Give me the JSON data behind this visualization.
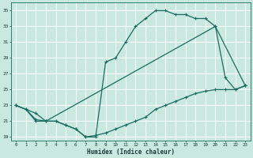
{
  "xlabel": "Humidex (Indice chaleur)",
  "bg_color": "#c8e8e0",
  "grid_color": "#ffffff",
  "line_color": "#1a6b60",
  "xlim": [
    -0.5,
    23.5
  ],
  "ylim": [
    18.5,
    36
  ],
  "yticks": [
    19,
    21,
    23,
    25,
    27,
    29,
    31,
    33,
    35
  ],
  "xticks": [
    0,
    1,
    2,
    3,
    4,
    5,
    6,
    7,
    8,
    9,
    10,
    11,
    12,
    13,
    14,
    15,
    16,
    17,
    18,
    19,
    20,
    21,
    22,
    23
  ],
  "line1_x": [
    0,
    1,
    2,
    3,
    4,
    5,
    6,
    7,
    8,
    9,
    10,
    11,
    12,
    13,
    14,
    15,
    16,
    17,
    18,
    19,
    20,
    21,
    22,
    23
  ],
  "line1_y": [
    23.0,
    22.5,
    21.0,
    21.0,
    21.0,
    20.5,
    20.0,
    19.0,
    19.0,
    28.5,
    29.0,
    31.0,
    33.0,
    34.0,
    35.0,
    35.0,
    34.5,
    34.5,
    34.0,
    34.0,
    33.0,
    26.5,
    25.0,
    25.5
  ],
  "line2_x": [
    0,
    2,
    3,
    20,
    23
  ],
  "line2_y": [
    23.0,
    22.0,
    21.0,
    33.0,
    25.5
  ],
  "line3_x": [
    0,
    1,
    2,
    3,
    4,
    5,
    6,
    7,
    8,
    9,
    10,
    11,
    12,
    13,
    14,
    15,
    16,
    17,
    18,
    19,
    20,
    21,
    22,
    23
  ],
  "line3_y": [
    23.0,
    22.5,
    21.2,
    21.0,
    21.0,
    20.5,
    20.0,
    19.0,
    19.2,
    19.5,
    20.0,
    20.5,
    21.0,
    21.5,
    22.5,
    23.0,
    23.5,
    24.0,
    24.5,
    24.8,
    25.0,
    25.0,
    25.0,
    25.5
  ]
}
